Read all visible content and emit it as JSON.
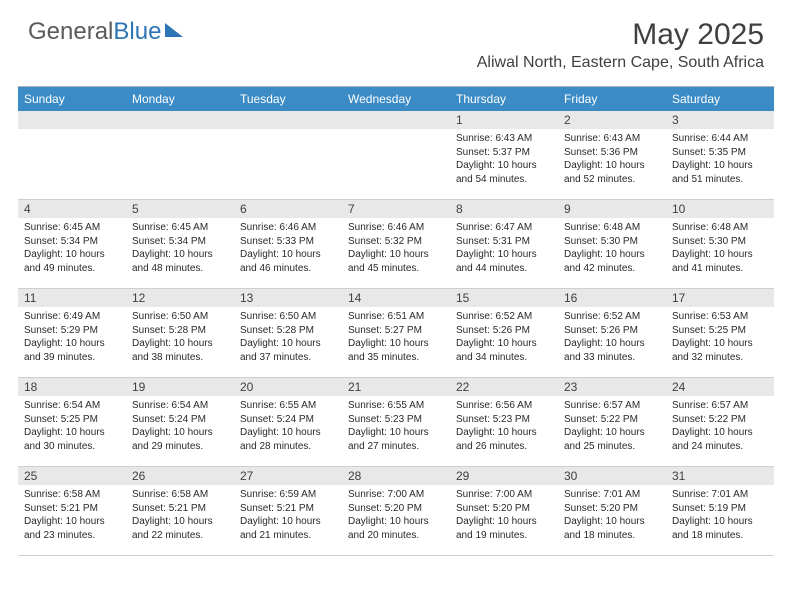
{
  "brand": {
    "name_a": "General",
    "name_b": "Blue"
  },
  "month_title": "May 2025",
  "location": "Aliwal North, Eastern Cape, South Africa",
  "weekdays": [
    "Sunday",
    "Monday",
    "Tuesday",
    "Wednesday",
    "Thursday",
    "Friday",
    "Saturday"
  ],
  "colors": {
    "header_bar": "#3b8bc6",
    "day_num_bg": "#e8e8e8",
    "text": "#2a2a2a",
    "rule": "#cfcfcf"
  },
  "weeks": [
    [
      {
        "n": "",
        "sr": "",
        "ss": "",
        "dl": ""
      },
      {
        "n": "",
        "sr": "",
        "ss": "",
        "dl": ""
      },
      {
        "n": "",
        "sr": "",
        "ss": "",
        "dl": ""
      },
      {
        "n": "",
        "sr": "",
        "ss": "",
        "dl": ""
      },
      {
        "n": "1",
        "sr": "Sunrise: 6:43 AM",
        "ss": "Sunset: 5:37 PM",
        "dl": "Daylight: 10 hours and 54 minutes."
      },
      {
        "n": "2",
        "sr": "Sunrise: 6:43 AM",
        "ss": "Sunset: 5:36 PM",
        "dl": "Daylight: 10 hours and 52 minutes."
      },
      {
        "n": "3",
        "sr": "Sunrise: 6:44 AM",
        "ss": "Sunset: 5:35 PM",
        "dl": "Daylight: 10 hours and 51 minutes."
      }
    ],
    [
      {
        "n": "4",
        "sr": "Sunrise: 6:45 AM",
        "ss": "Sunset: 5:34 PM",
        "dl": "Daylight: 10 hours and 49 minutes."
      },
      {
        "n": "5",
        "sr": "Sunrise: 6:45 AM",
        "ss": "Sunset: 5:34 PM",
        "dl": "Daylight: 10 hours and 48 minutes."
      },
      {
        "n": "6",
        "sr": "Sunrise: 6:46 AM",
        "ss": "Sunset: 5:33 PM",
        "dl": "Daylight: 10 hours and 46 minutes."
      },
      {
        "n": "7",
        "sr": "Sunrise: 6:46 AM",
        "ss": "Sunset: 5:32 PM",
        "dl": "Daylight: 10 hours and 45 minutes."
      },
      {
        "n": "8",
        "sr": "Sunrise: 6:47 AM",
        "ss": "Sunset: 5:31 PM",
        "dl": "Daylight: 10 hours and 44 minutes."
      },
      {
        "n": "9",
        "sr": "Sunrise: 6:48 AM",
        "ss": "Sunset: 5:30 PM",
        "dl": "Daylight: 10 hours and 42 minutes."
      },
      {
        "n": "10",
        "sr": "Sunrise: 6:48 AM",
        "ss": "Sunset: 5:30 PM",
        "dl": "Daylight: 10 hours and 41 minutes."
      }
    ],
    [
      {
        "n": "11",
        "sr": "Sunrise: 6:49 AM",
        "ss": "Sunset: 5:29 PM",
        "dl": "Daylight: 10 hours and 39 minutes."
      },
      {
        "n": "12",
        "sr": "Sunrise: 6:50 AM",
        "ss": "Sunset: 5:28 PM",
        "dl": "Daylight: 10 hours and 38 minutes."
      },
      {
        "n": "13",
        "sr": "Sunrise: 6:50 AM",
        "ss": "Sunset: 5:28 PM",
        "dl": "Daylight: 10 hours and 37 minutes."
      },
      {
        "n": "14",
        "sr": "Sunrise: 6:51 AM",
        "ss": "Sunset: 5:27 PM",
        "dl": "Daylight: 10 hours and 35 minutes."
      },
      {
        "n": "15",
        "sr": "Sunrise: 6:52 AM",
        "ss": "Sunset: 5:26 PM",
        "dl": "Daylight: 10 hours and 34 minutes."
      },
      {
        "n": "16",
        "sr": "Sunrise: 6:52 AM",
        "ss": "Sunset: 5:26 PM",
        "dl": "Daylight: 10 hours and 33 minutes."
      },
      {
        "n": "17",
        "sr": "Sunrise: 6:53 AM",
        "ss": "Sunset: 5:25 PM",
        "dl": "Daylight: 10 hours and 32 minutes."
      }
    ],
    [
      {
        "n": "18",
        "sr": "Sunrise: 6:54 AM",
        "ss": "Sunset: 5:25 PM",
        "dl": "Daylight: 10 hours and 30 minutes."
      },
      {
        "n": "19",
        "sr": "Sunrise: 6:54 AM",
        "ss": "Sunset: 5:24 PM",
        "dl": "Daylight: 10 hours and 29 minutes."
      },
      {
        "n": "20",
        "sr": "Sunrise: 6:55 AM",
        "ss": "Sunset: 5:24 PM",
        "dl": "Daylight: 10 hours and 28 minutes."
      },
      {
        "n": "21",
        "sr": "Sunrise: 6:55 AM",
        "ss": "Sunset: 5:23 PM",
        "dl": "Daylight: 10 hours and 27 minutes."
      },
      {
        "n": "22",
        "sr": "Sunrise: 6:56 AM",
        "ss": "Sunset: 5:23 PM",
        "dl": "Daylight: 10 hours and 26 minutes."
      },
      {
        "n": "23",
        "sr": "Sunrise: 6:57 AM",
        "ss": "Sunset: 5:22 PM",
        "dl": "Daylight: 10 hours and 25 minutes."
      },
      {
        "n": "24",
        "sr": "Sunrise: 6:57 AM",
        "ss": "Sunset: 5:22 PM",
        "dl": "Daylight: 10 hours and 24 minutes."
      }
    ],
    [
      {
        "n": "25",
        "sr": "Sunrise: 6:58 AM",
        "ss": "Sunset: 5:21 PM",
        "dl": "Daylight: 10 hours and 23 minutes."
      },
      {
        "n": "26",
        "sr": "Sunrise: 6:58 AM",
        "ss": "Sunset: 5:21 PM",
        "dl": "Daylight: 10 hours and 22 minutes."
      },
      {
        "n": "27",
        "sr": "Sunrise: 6:59 AM",
        "ss": "Sunset: 5:21 PM",
        "dl": "Daylight: 10 hours and 21 minutes."
      },
      {
        "n": "28",
        "sr": "Sunrise: 7:00 AM",
        "ss": "Sunset: 5:20 PM",
        "dl": "Daylight: 10 hours and 20 minutes."
      },
      {
        "n": "29",
        "sr": "Sunrise: 7:00 AM",
        "ss": "Sunset: 5:20 PM",
        "dl": "Daylight: 10 hours and 19 minutes."
      },
      {
        "n": "30",
        "sr": "Sunrise: 7:01 AM",
        "ss": "Sunset: 5:20 PM",
        "dl": "Daylight: 10 hours and 18 minutes."
      },
      {
        "n": "31",
        "sr": "Sunrise: 7:01 AM",
        "ss": "Sunset: 5:19 PM",
        "dl": "Daylight: 10 hours and 18 minutes."
      }
    ]
  ]
}
